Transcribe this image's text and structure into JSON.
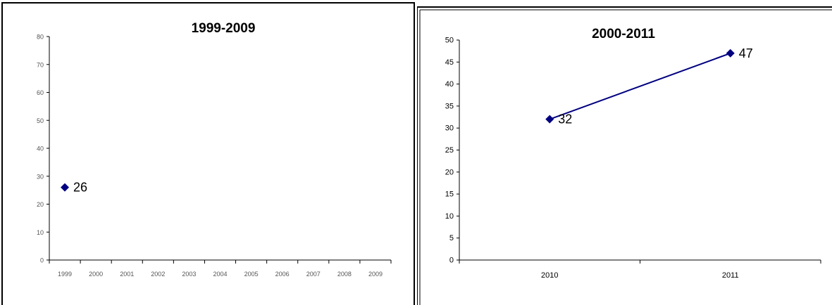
{
  "chart_data": [
    {
      "type": "line",
      "title": "1999-2009",
      "categories": [
        "1999",
        "2000",
        "2001",
        "2002",
        "2003",
        "2004",
        "2005",
        "2006",
        "2007",
        "2008",
        "2009"
      ],
      "series": [
        {
          "values": [
            26,
            null,
            null,
            null,
            null,
            null,
            null,
            null,
            null,
            null,
            null
          ]
        }
      ],
      "data_labels": [
        "26"
      ],
      "y_ticks": [
        "0",
        "10",
        "20",
        "30",
        "40",
        "50",
        "60",
        "70",
        "80"
      ],
      "ylim": [
        0,
        80
      ],
      "grid": false,
      "marker": "diamond",
      "colors": {
        "series": "#000080",
        "axis": "#000000",
        "tick_label": "#555555"
      }
    },
    {
      "type": "line",
      "title": "2000-2011",
      "categories": [
        "2010",
        "2011"
      ],
      "series": [
        {
          "values": [
            32,
            47
          ]
        }
      ],
      "data_labels": [
        "32",
        "47"
      ],
      "y_ticks": [
        "0",
        "5",
        "10",
        "15",
        "20",
        "25",
        "30",
        "35",
        "40",
        "45",
        "50"
      ],
      "ylim": [
        0,
        50
      ],
      "grid": false,
      "marker": "diamond",
      "colors": {
        "series": "#000080",
        "axis": "#000000",
        "tick_label": "#000000"
      }
    }
  ]
}
